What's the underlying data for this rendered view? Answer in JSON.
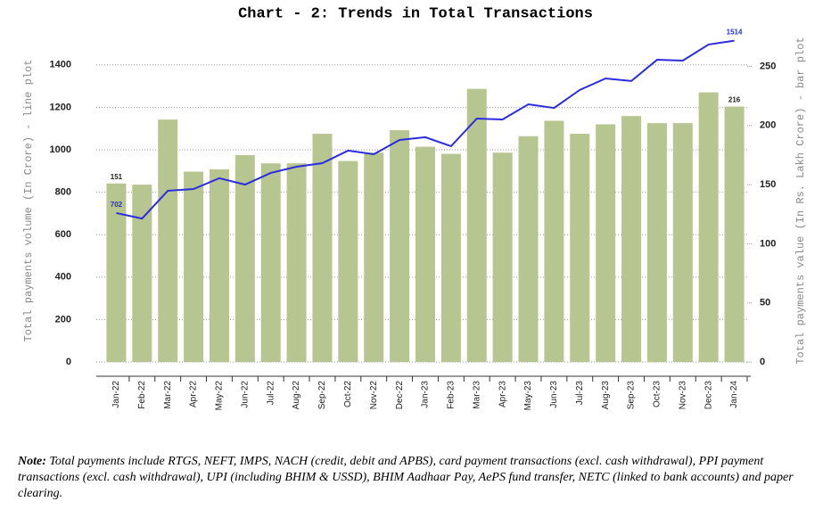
{
  "chart_data": {
    "type": "bar-line",
    "title": "Chart - 2: Trends in Total Transactions",
    "ylabel": "Total payments volume (In Crore) - line plot",
    "y2label": "Total payments value (In Rs. Lakh Crore) - bar plot",
    "categories": [
      "Jan-22",
      "Feb-22",
      "Mar-22",
      "Apr-22",
      "May-22",
      "Jun-22",
      "Jul-22",
      "Aug-22",
      "Sep-22",
      "Oct-22",
      "Nov-22",
      "Dec-22",
      "Jan-23",
      "Feb-23",
      "Mar-23",
      "Apr-23",
      "May-23",
      "Jun-23",
      "Jul-23",
      "Aug-23",
      "Sep-23",
      "Oct-23",
      "Nov-23",
      "Dec-23",
      "Jan-24"
    ],
    "series": [
      {
        "kind": "bar",
        "axis": "y2",
        "color": "#b7c590",
        "values": [
          151,
          150,
          205,
          161,
          163,
          175,
          168,
          168,
          193,
          170,
          177,
          196,
          182,
          176,
          231,
          177,
          191,
          204,
          193,
          201,
          208,
          202,
          202,
          228,
          216
        ]
      },
      {
        "kind": "line",
        "axis": "y",
        "color": "#2b2be0",
        "values": [
          702,
          676,
          807,
          815,
          866,
          836,
          891,
          920,
          937,
          996,
          979,
          1046,
          1059,
          1017,
          1147,
          1143,
          1214,
          1197,
          1282,
          1336,
          1324,
          1424,
          1420,
          1496,
          1514
        ]
      }
    ],
    "labeled_points": [
      0,
      24
    ],
    "ylim": [
      -67,
      1588
    ],
    "yticks": [
      0,
      200,
      400,
      600,
      800,
      1000,
      1200,
      1400
    ],
    "y2lim": [
      -12,
      285
    ],
    "y2ticks": [
      0,
      50,
      100,
      150,
      200,
      250
    ],
    "grid": true
  },
  "note": {
    "label": "Note:",
    "text": " Total payments include RTGS, NEFT, IMPS, NACH (credit, debit and APBS), card payment transactions (excl. cash withdrawal), PPI payment transactions (excl. cash withdrawal), UPI (including BHIM & USSD), BHIM Aadhaar Pay, AePS fund transfer, NETC (linked to bank accounts) and paper clearing."
  }
}
